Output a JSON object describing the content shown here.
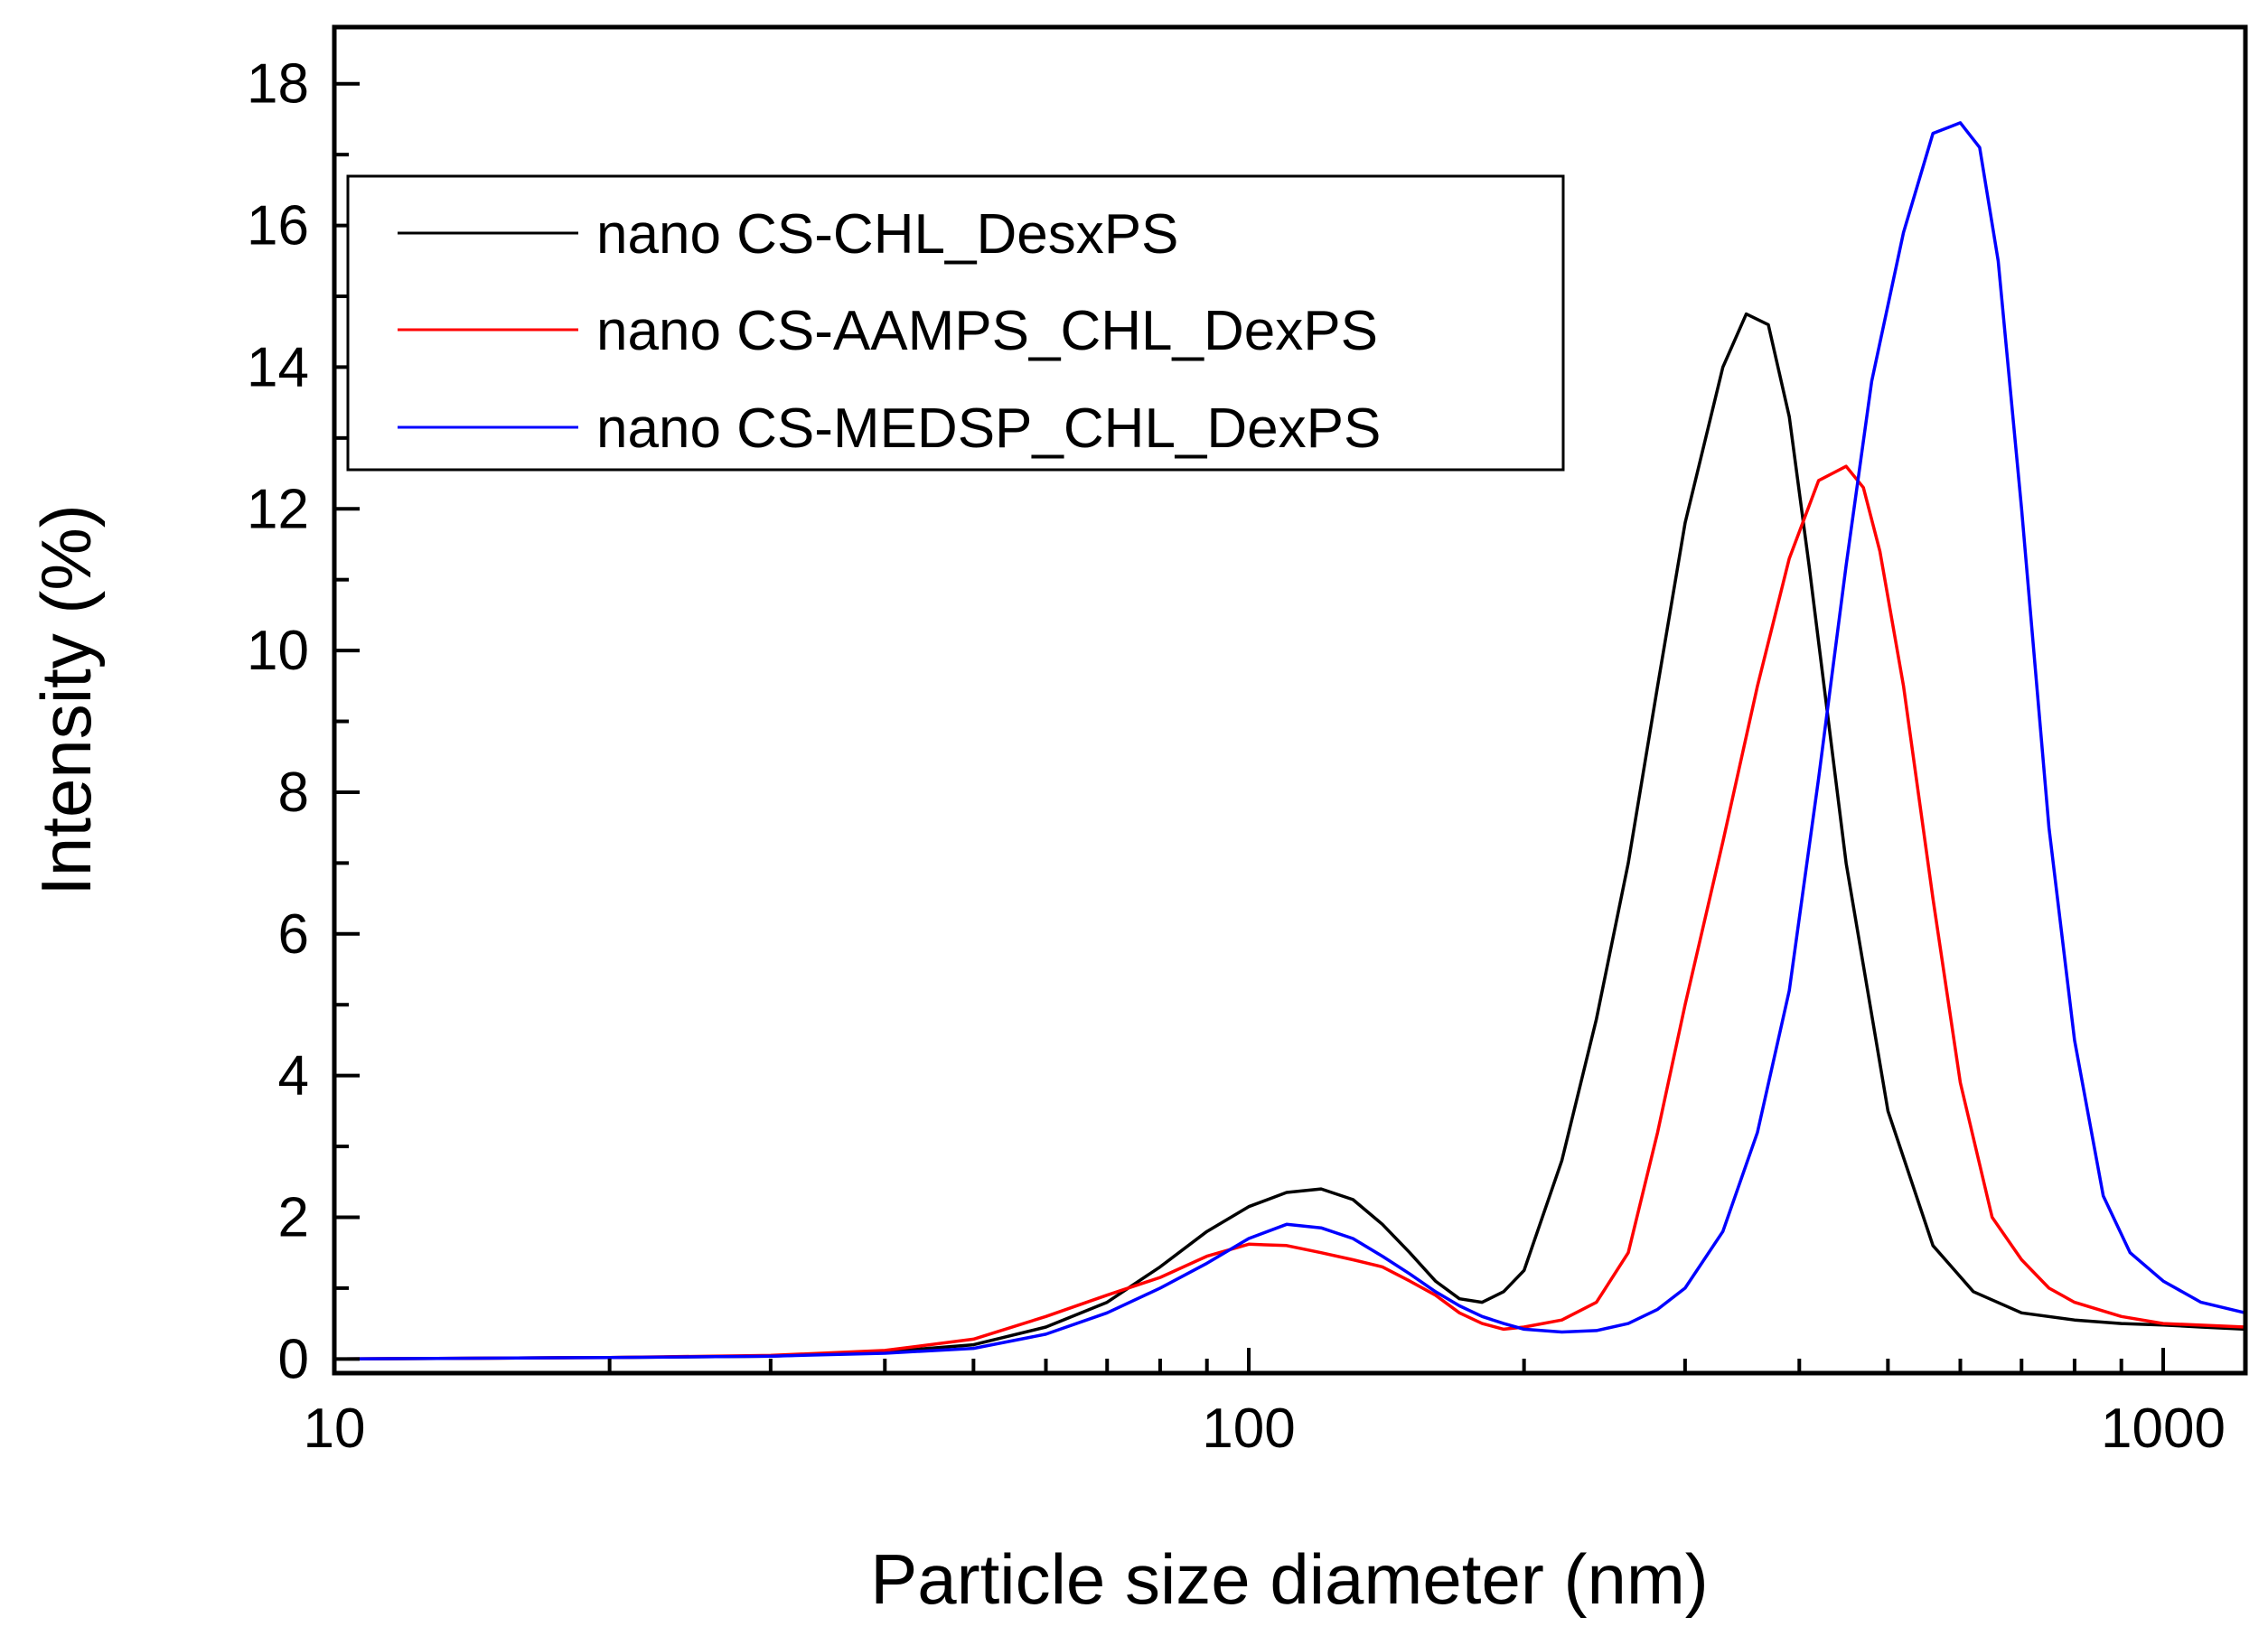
{
  "chart_data": {
    "type": "line",
    "title": "",
    "xlabel": "Particle size diameter (nm)",
    "ylabel": "Intensity (%)",
    "xscale": "log",
    "xlim": [
      10,
      1230
    ],
    "ylim": [
      -0.2,
      18.8
    ],
    "xticks": [
      10,
      100,
      1000
    ],
    "xtick_labels": [
      "10",
      "100",
      "1000"
    ],
    "yticks": [
      0,
      2,
      4,
      6,
      8,
      10,
      12,
      14,
      16,
      18
    ],
    "ytick_labels": [
      "0",
      "2",
      "4",
      "6",
      "8",
      "10",
      "12",
      "14",
      "16",
      "18"
    ],
    "grid": false,
    "legend_position": "top-left",
    "series": [
      {
        "name": "nano CS-CHL_DesxPS",
        "color": "#000000",
        "x": [
          10,
          20,
          30,
          40,
          50,
          60,
          70,
          80,
          90,
          100,
          110,
          120,
          130,
          140,
          150,
          160,
          170,
          180,
          190,
          200,
          220,
          240,
          260,
          280,
          300,
          330,
          350,
          370,
          390,
          410,
          450,
          500,
          560,
          620,
          700,
          800,
          900,
          1000,
          1100,
          1230
        ],
        "y": [
          0,
          0.02,
          0.04,
          0.1,
          0.2,
          0.45,
          0.8,
          1.3,
          1.8,
          2.15,
          2.35,
          2.4,
          2.25,
          1.9,
          1.5,
          1.1,
          0.85,
          0.8,
          0.95,
          1.25,
          2.8,
          4.8,
          7.0,
          9.5,
          11.8,
          14.0,
          14.75,
          14.6,
          13.3,
          11.2,
          7.0,
          3.5,
          1.6,
          0.95,
          0.65,
          0.55,
          0.5,
          0.48,
          0.45,
          0.42
        ]
      },
      {
        "name": "nano CS-AAMPS_CHL_DexPS",
        "color": "#ff0000",
        "x": [
          10,
          20,
          30,
          40,
          50,
          60,
          70,
          80,
          90,
          100,
          110,
          120,
          130,
          140,
          150,
          160,
          170,
          180,
          190,
          200,
          220,
          240,
          260,
          280,
          300,
          330,
          360,
          390,
          420,
          450,
          470,
          490,
          520,
          560,
          600,
          650,
          700,
          750,
          800,
          900,
          1000,
          1230
        ],
        "y": [
          0,
          0.02,
          0.05,
          0.12,
          0.28,
          0.6,
          0.9,
          1.15,
          1.45,
          1.62,
          1.6,
          1.5,
          1.4,
          1.3,
          1.1,
          0.9,
          0.65,
          0.5,
          0.42,
          0.45,
          0.55,
          0.8,
          1.5,
          3.2,
          5.0,
          7.3,
          9.5,
          11.3,
          12.4,
          12.6,
          12.3,
          11.4,
          9.5,
          6.5,
          3.9,
          2.0,
          1.4,
          1.0,
          0.8,
          0.6,
          0.5,
          0.45
        ]
      },
      {
        "name": "nano CS-MEDSP_CHL_DexPS",
        "color": "#0000ff",
        "x": [
          10,
          20,
          30,
          40,
          50,
          60,
          70,
          80,
          90,
          100,
          110,
          120,
          130,
          140,
          150,
          160,
          170,
          180,
          190,
          200,
          220,
          240,
          260,
          280,
          300,
          330,
          360,
          390,
          420,
          450,
          480,
          520,
          560,
          600,
          630,
          660,
          700,
          750,
          800,
          860,
          920,
          1000,
          1100,
          1230
        ],
        "y": [
          0,
          0.02,
          0.04,
          0.08,
          0.15,
          0.35,
          0.65,
          1.0,
          1.35,
          1.7,
          1.9,
          1.85,
          1.7,
          1.45,
          1.2,
          0.95,
          0.75,
          0.6,
          0.5,
          0.42,
          0.38,
          0.4,
          0.5,
          0.7,
          1.0,
          1.8,
          3.2,
          5.2,
          8.2,
          11.2,
          13.8,
          15.9,
          17.3,
          17.45,
          17.1,
          15.5,
          12.0,
          7.5,
          4.5,
          2.3,
          1.5,
          1.1,
          0.8,
          0.65
        ]
      }
    ]
  }
}
